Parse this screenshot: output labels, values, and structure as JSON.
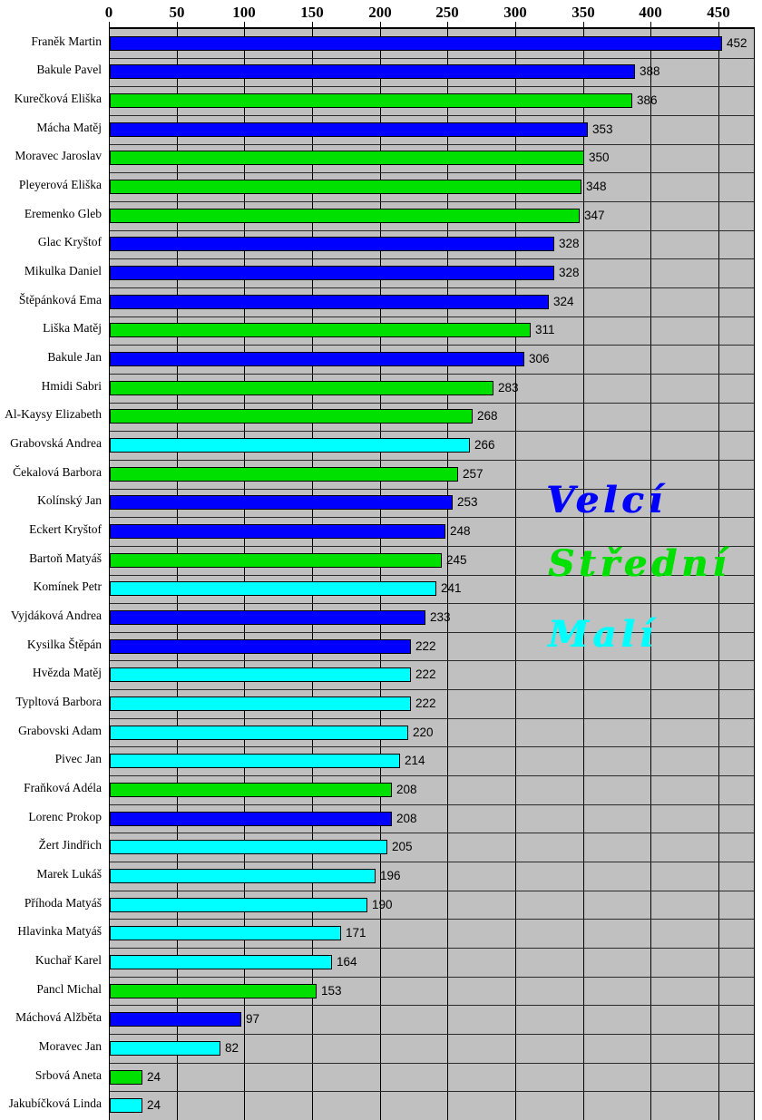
{
  "chart_data": {
    "type": "bar",
    "orientation": "horizontal",
    "title": "",
    "xlabel": "",
    "ylabel": "",
    "x_axis": {
      "min": 0,
      "max": 475,
      "tick_interval": 50,
      "ticks": [
        0,
        50,
        100,
        150,
        200,
        250,
        300,
        350,
        400,
        450
      ],
      "position": "top",
      "grid": true
    },
    "colors": {
      "plot_background": "#c0c0c0",
      "gridline": "#000000",
      "row_separator": "#2a2a2a",
      "bar_border": "#000000"
    },
    "legend": [
      {
        "key": "velci",
        "label": "Velcí",
        "color": "#0000ff"
      },
      {
        "key": "stredni",
        "label": "Střední",
        "color": "#00e000"
      },
      {
        "key": "mali",
        "label": "Malí",
        "color": "#00ffff"
      }
    ],
    "bars": [
      {
        "name": "Franěk Martin",
        "value": 452,
        "group": "velci"
      },
      {
        "name": "Bakule Pavel",
        "value": 388,
        "group": "velci"
      },
      {
        "name": "Kurečková Eliška",
        "value": 386,
        "group": "stredni"
      },
      {
        "name": "Mácha Matěj",
        "value": 353,
        "group": "velci"
      },
      {
        "name": "Moravec Jaroslav",
        "value": 350,
        "group": "stredni"
      },
      {
        "name": "Pleyerová Eliška",
        "value": 348,
        "group": "stredni"
      },
      {
        "name": "Eremenko Gleb",
        "value": 347,
        "group": "stredni"
      },
      {
        "name": "Glac Kryštof",
        "value": 328,
        "group": "velci"
      },
      {
        "name": "Mikulka Daniel",
        "value": 328,
        "group": "velci"
      },
      {
        "name": "Štěpánková Ema",
        "value": 324,
        "group": "velci"
      },
      {
        "name": "Liška Matěj",
        "value": 311,
        "group": "stredni"
      },
      {
        "name": "Bakule Jan",
        "value": 306,
        "group": "velci"
      },
      {
        "name": "Hmidi Sabri",
        "value": 283,
        "group": "stredni"
      },
      {
        "name": "Al-Kaysy Elizabeth",
        "value": 268,
        "group": "stredni"
      },
      {
        "name": "Grabovská Andrea",
        "value": 266,
        "group": "mali"
      },
      {
        "name": "Čekalová Barbora",
        "value": 257,
        "group": "stredni"
      },
      {
        "name": "Kolínský Jan",
        "value": 253,
        "group": "velci"
      },
      {
        "name": "Eckert Kryštof",
        "value": 248,
        "group": "velci"
      },
      {
        "name": "Bartoň Matyáš",
        "value": 245,
        "group": "stredni"
      },
      {
        "name": "Komínek Petr",
        "value": 241,
        "group": "mali"
      },
      {
        "name": "Vyjdáková Andrea",
        "value": 233,
        "group": "velci"
      },
      {
        "name": "Kysilka Štěpán",
        "value": 222,
        "group": "velci"
      },
      {
        "name": "Hvězda Matěj",
        "value": 222,
        "group": "mali"
      },
      {
        "name": "Typltová Barbora",
        "value": 222,
        "group": "mali"
      },
      {
        "name": "Grabovski Adam",
        "value": 220,
        "group": "mali"
      },
      {
        "name": "Pivec Jan",
        "value": 214,
        "group": "mali"
      },
      {
        "name": "Fraňková Adéla",
        "value": 208,
        "group": "stredni"
      },
      {
        "name": "Lorenc Prokop",
        "value": 208,
        "group": "velci"
      },
      {
        "name": "Žert Jindřich",
        "value": 205,
        "group": "mali"
      },
      {
        "name": "Marek Lukáš",
        "value": 196,
        "group": "mali"
      },
      {
        "name": "Příhoda Matyáš",
        "value": 190,
        "group": "mali"
      },
      {
        "name": "Hlavinka Matyáš",
        "value": 171,
        "group": "mali"
      },
      {
        "name": "Kuchař Karel",
        "value": 164,
        "group": "mali"
      },
      {
        "name": "Pancl Michal",
        "value": 153,
        "group": "stredni"
      },
      {
        "name": "Máchová Alžběta",
        "value": 97,
        "group": "velci"
      },
      {
        "name": "Moravec Jan",
        "value": 82,
        "group": "mali"
      },
      {
        "name": "Srbová Aneta",
        "value": 24,
        "group": "stredni"
      },
      {
        "name": "Jakubíčková Linda",
        "value": 24,
        "group": "mali"
      }
    ]
  }
}
